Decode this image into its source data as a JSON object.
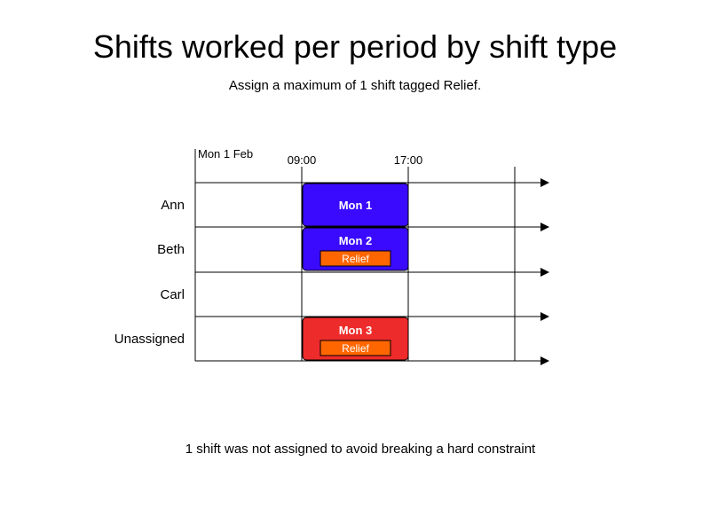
{
  "header": {
    "title": "Shifts worked per period by shift type",
    "subtitle": "Assign a maximum of 1 shift tagged Relief."
  },
  "timeline": {
    "date_label": "Mon 1 Feb",
    "times": [
      "09:00",
      "17:00"
    ]
  },
  "rows": [
    {
      "name": "Ann"
    },
    {
      "name": "Beth"
    },
    {
      "name": "Carl"
    },
    {
      "name": "Unassigned"
    }
  ],
  "shifts": [
    {
      "label": "Mon 1",
      "row": 0,
      "color": "#3a0aff",
      "tag": ""
    },
    {
      "label": "Mon 2",
      "row": 1,
      "color": "#3a0aff",
      "tag": "Relief"
    },
    {
      "label": "Mon 3",
      "row": 3,
      "color": "#ee2b2b",
      "tag": "Relief"
    }
  ],
  "tag_color": "#ff6600",
  "footer": {
    "note": "1 shift was not assigned to avoid breaking a hard constraint"
  }
}
